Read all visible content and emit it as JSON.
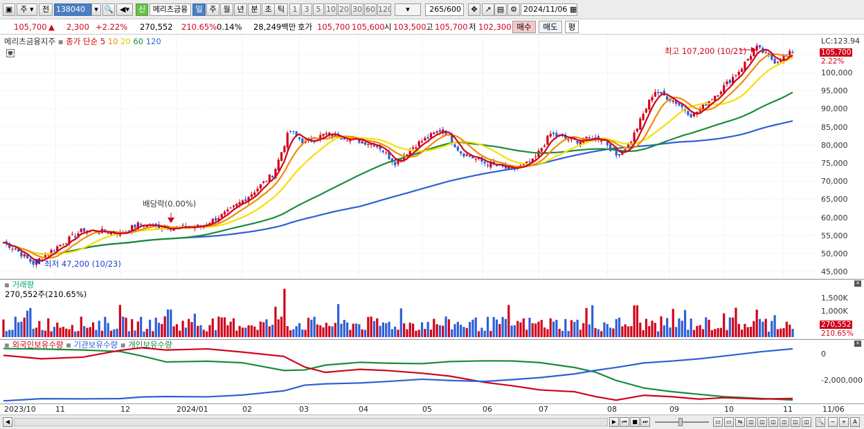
{
  "toolbar": {
    "type_select": "주",
    "prev_label": "전",
    "code": "138040",
    "new_label": "신",
    "stock_name": "메리츠금융",
    "periods": [
      "일",
      "주",
      "월",
      "년",
      "분",
      "초",
      "틱"
    ],
    "intervals": [
      "1",
      "3",
      "5",
      "10",
      "20",
      "30",
      "60",
      "120"
    ],
    "count_current": "265",
    "count_total": "/600",
    "date": "2024/11/06"
  },
  "quote": {
    "price": "105,700",
    "change_arrow": "▲",
    "change": "2,300",
    "change_pct": "+2.22%",
    "volume": "270,552",
    "volume_ratio": "210.65%",
    "turnover": "0.14%",
    "amount": "28,249백만",
    "ask_label": "호가",
    "ask": "105,700",
    "bid": "105,600",
    "open_label": "시",
    "open": "103,500",
    "high_label": "고",
    "high": "105,700",
    "low_label": "저",
    "low": "102,300",
    "buy_label": "매수",
    "sell_label": "매도",
    "flat_label": "평"
  },
  "price_panel": {
    "name": "메리츠금융지주",
    "ma_label": "종가 단순",
    "ma_periods": [
      "5",
      "10",
      "20",
      "60",
      "120"
    ],
    "ma_colors": [
      "#d0021b",
      "#f08c00",
      "#f5e000",
      "#1a8c3a",
      "#2e5fd6"
    ],
    "lc_label": "LC:123.94",
    "price_tag": "105,700",
    "pct_tag": "2.22%",
    "y_ticks": [
      "100,000",
      "95,000",
      "90,000",
      "85,000",
      "80,000",
      "75,000",
      "70,000",
      "65,000",
      "60,000",
      "55,000",
      "50,000",
      "45,000"
    ],
    "high_annotation": "최고 107,200 (10/21)",
    "low_annotation": "최저 47,200 (10/23)",
    "dividend_annotation": "배당락(0.00%)"
  },
  "volume_panel": {
    "title": "거래량",
    "value_text": "270,552주(210.65%)",
    "y_ticks": [
      "1,500K",
      "1,000K"
    ],
    "volume_tag": "270,552",
    "pct_tag": "210.65%"
  },
  "holding_panel": {
    "labels": [
      "외국인보유수량",
      "기관보유수량",
      "개인보유수량"
    ],
    "colors": [
      "#d0021b",
      "#2e5fd6",
      "#1a8c3a"
    ],
    "y_ticks": [
      "0",
      "-2,000,000"
    ]
  },
  "x_axis": {
    "labels": [
      "2023/10",
      "11",
      "12",
      "2024/01",
      "02",
      "03",
      "04",
      "05",
      "06",
      "07",
      "08",
      "09",
      "10",
      "11"
    ],
    "right_label": "11/06"
  },
  "chart_data": {
    "type": "candlestick",
    "title": "메리츠금융지주",
    "ylim": [
      45000,
      110000
    ],
    "months": [
      "2023/10",
      "11",
      "12",
      "2024/01",
      "02",
      "03",
      "04",
      "05",
      "06",
      "07",
      "08",
      "09",
      "10",
      "11"
    ],
    "close_approx": [
      {
        "date": "2023/10",
        "close": 53000
      },
      {
        "date": "2023/10/23",
        "close": 47200
      },
      {
        "date": "11",
        "close": 51500
      },
      {
        "date": "12",
        "close": 56000
      },
      {
        "date": "2024/01",
        "close": 57000
      },
      {
        "date": "02",
        "close": 63000
      },
      {
        "date": "03",
        "close": 82000
      },
      {
        "date": "04",
        "close": 81000
      },
      {
        "date": "05",
        "close": 79000
      },
      {
        "date": "06",
        "close": 74500
      },
      {
        "date": "07",
        "close": 79500
      },
      {
        "date": "08",
        "close": 80000
      },
      {
        "date": "09",
        "close": 91000
      },
      {
        "date": "10",
        "close": 101000
      },
      {
        "date": "10/21",
        "close": 107200
      },
      {
        "date": "11/06",
        "close": 105700
      }
    ]
  }
}
